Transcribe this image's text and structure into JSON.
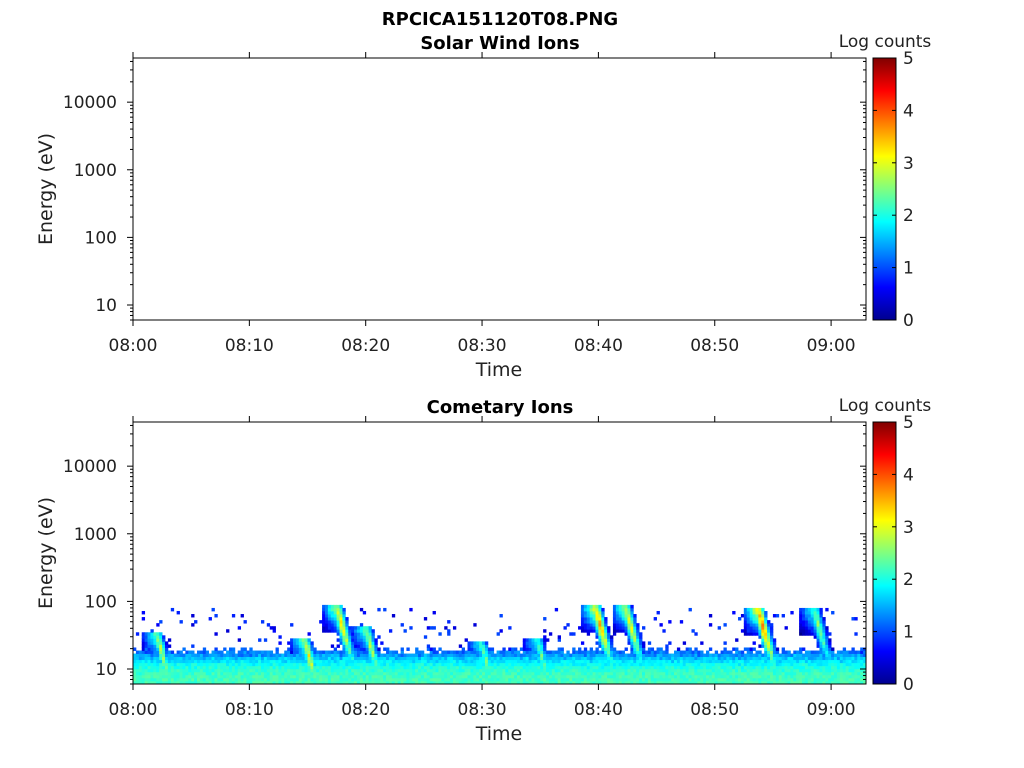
{
  "figure_title": "RPCICA151120T08.PNG",
  "chart_data": [
    {
      "type": "heatmap",
      "title": "Solar Wind Ions",
      "xlabel": "Time",
      "ylabel": "Energy (eV)",
      "x_range": [
        "08:00",
        "09:03"
      ],
      "x_ticks": [
        "08:00",
        "08:10",
        "08:20",
        "08:30",
        "08:40",
        "08:50",
        "09:00"
      ],
      "y_scale": "log",
      "y_range": [
        6,
        45000
      ],
      "y_ticks": [
        "10",
        "100",
        "1000",
        "10000"
      ],
      "colorbar": {
        "label": "Log counts",
        "range": [
          0,
          5
        ],
        "ticks": [
          "0",
          "1",
          "2",
          "3",
          "4",
          "5"
        ],
        "colormap": "jet"
      },
      "grid": false,
      "data_summary": "no counts"
    },
    {
      "type": "heatmap",
      "title": "Cometary Ions",
      "xlabel": "Time",
      "ylabel": "Energy (eV)",
      "x_range": [
        "08:00",
        "09:03"
      ],
      "x_ticks": [
        "08:00",
        "08:10",
        "08:20",
        "08:30",
        "08:40",
        "08:50",
        "09:00"
      ],
      "y_scale": "log",
      "y_range": [
        6,
        45000
      ],
      "y_ticks": [
        "10",
        "100",
        "1000",
        "10000"
      ],
      "colorbar": {
        "label": "Log counts",
        "range": [
          0,
          5
        ],
        "ticks": [
          "0",
          "1",
          "2",
          "3",
          "4",
          "5"
        ],
        "colormap": "jet"
      },
      "grid": false,
      "background_band": {
        "energy_top_ev": 18,
        "log_counts_low_energy": 2.2,
        "log_counts_upper_edge": 1.0
      },
      "sparse_counts_max_energy_ev": 80,
      "bursts": [
        {
          "time_min": 2.3,
          "peak_energy_ev": 30,
          "peak_log_counts": 3.0
        },
        {
          "time_min": 15.0,
          "peak_energy_ev": 25,
          "peak_log_counts": 3.2
        },
        {
          "time_min": 17.8,
          "peak_energy_ev": 75,
          "peak_log_counts": 3.5
        },
        {
          "time_min": 20.3,
          "peak_energy_ev": 35,
          "peak_log_counts": 3.0
        },
        {
          "time_min": 30.2,
          "peak_energy_ev": 22,
          "peak_log_counts": 2.6
        },
        {
          "time_min": 35.0,
          "peak_energy_ev": 25,
          "peak_log_counts": 2.5
        },
        {
          "time_min": 40.0,
          "peak_energy_ev": 75,
          "peak_log_counts": 3.8
        },
        {
          "time_min": 42.6,
          "peak_energy_ev": 75,
          "peak_log_counts": 3.4
        },
        {
          "time_min": 54.0,
          "peak_energy_ev": 70,
          "peak_log_counts": 4.0
        },
        {
          "time_min": 58.8,
          "peak_energy_ev": 70,
          "peak_log_counts": 2.8
        }
      ]
    }
  ]
}
